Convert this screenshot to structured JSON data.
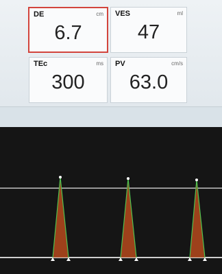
{
  "measurements": [
    {
      "label": "DE",
      "unit": "cm",
      "value": "6.7"
    },
    {
      "label": "VES",
      "unit": "ml",
      "value": "47"
    },
    {
      "label": "TEc",
      "unit": "ms",
      "value": "300"
    },
    {
      "label": "PV",
      "unit": "cm/s",
      "value": "63.0"
    }
  ]
}
